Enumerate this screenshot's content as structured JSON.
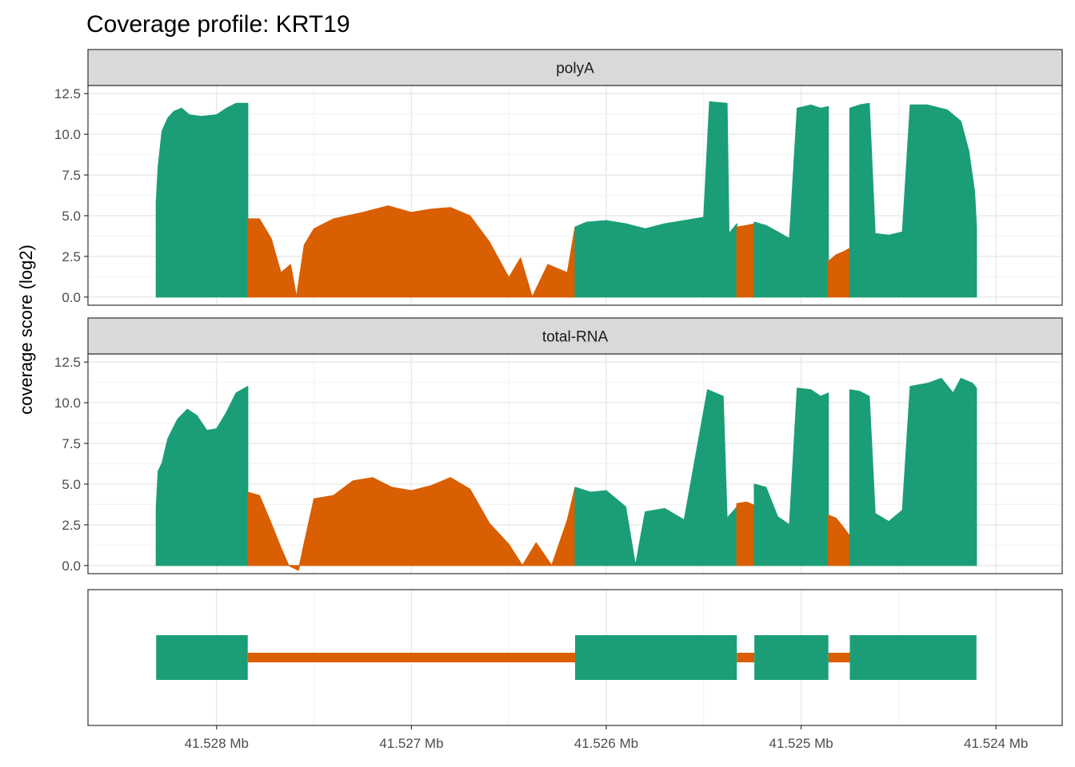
{
  "colors": {
    "exon": "#1b9e77",
    "intron": "#d95f02",
    "strip_bg": "#d9d9d9",
    "grid_major": "#ebebeb",
    "grid_minor": "#f3f3f3",
    "border": "#333333"
  },
  "chart_data": {
    "type": "area",
    "title": "Coverage profile: KRT19",
    "ylabel": "coverage score (log2)",
    "xlabel": "",
    "x_unit": "Mb",
    "x_reversed": true,
    "xlim": [
      41.52866,
      41.52366
    ],
    "x_ticks": [
      41.528,
      41.527,
      41.526,
      41.525,
      41.524
    ],
    "x_tick_labels": [
      "41.528 Mb",
      "41.527 Mb",
      "41.526 Mb",
      "41.525 Mb",
      "41.524 Mb"
    ],
    "ylim": [
      -0.5,
      13.0
    ],
    "y_ticks": [
      0,
      2.5,
      5,
      7.5,
      10,
      12.5
    ],
    "y_tick_labels": [
      "0.0",
      "2.5",
      "5.0",
      "7.5",
      "10.0",
      "12.5"
    ],
    "grid": true,
    "legend": "none",
    "gene_model": {
      "exons": [
        [
          41.52831,
          41.52784
        ],
        [
          41.52616,
          41.52533
        ],
        [
          41.52524,
          41.52486
        ],
        [
          41.52475,
          41.5241
        ]
      ],
      "introns": [
        [
          41.52784,
          41.52616
        ],
        [
          41.52533,
          41.52524
        ],
        [
          41.52486,
          41.52475
        ]
      ]
    },
    "panels": [
      {
        "name": "polyA",
        "segments": [
          {
            "region": "exon",
            "start": 41.52831,
            "end": 41.52784,
            "points": [
              [
                41.52831,
                5.8
              ],
              [
                41.5283,
                8.0
              ],
              [
                41.52828,
                10.2
              ],
              [
                41.52825,
                11.0
              ],
              [
                41.52822,
                11.4
              ],
              [
                41.52818,
                11.6
              ],
              [
                41.52814,
                11.2
              ],
              [
                41.52808,
                11.1
              ],
              [
                41.528,
                11.2
              ],
              [
                41.52795,
                11.6
              ],
              [
                41.5279,
                11.9
              ],
              [
                41.52784,
                11.9
              ]
            ]
          },
          {
            "region": "intron",
            "start": 41.52784,
            "end": 41.52616,
            "points": [
              [
                41.52784,
                4.8
              ],
              [
                41.52778,
                4.8
              ],
              [
                41.52772,
                3.6
              ],
              [
                41.52767,
                1.5
              ],
              [
                41.52762,
                2.0
              ],
              [
                41.52759,
                0.0
              ],
              [
                41.52755,
                3.2
              ],
              [
                41.5275,
                4.2
              ],
              [
                41.5274,
                4.8
              ],
              [
                41.52725,
                5.2
              ],
              [
                41.52712,
                5.6
              ],
              [
                41.527,
                5.2
              ],
              [
                41.5269,
                5.4
              ],
              [
                41.5268,
                5.5
              ],
              [
                41.5267,
                5.0
              ],
              [
                41.5266,
                3.4
              ],
              [
                41.5265,
                1.2
              ],
              [
                41.52644,
                2.4
              ],
              [
                41.52638,
                0.0
              ],
              [
                41.5263,
                2.0
              ],
              [
                41.5262,
                1.5
              ],
              [
                41.5261,
                3.6
              ],
              [
                41.526,
                4.6
              ],
              [
                41.5259,
                5.0
              ],
              [
                41.5258,
                4.4
              ],
              [
                41.52575,
                2.2
              ],
              [
                41.52572,
                0.1
              ],
              [
                41.52565,
                0.0
              ],
              [
                41.52558,
                2.8
              ],
              [
                41.5255,
                4.4
              ],
              [
                41.5254,
                5.1
              ],
              [
                41.5253,
                5.2
              ],
              [
                41.5252,
                5.0
              ],
              [
                41.5251,
                4.8
              ],
              [
                41.525,
                4.6
              ],
              [
                41.5249,
                4.3
              ],
              [
                41.52482,
                4.2
              ],
              [
                41.5247,
                4.1
              ],
              [
                41.5246,
                4.0
              ],
              [
                41.52445,
                4.2
              ],
              [
                41.5243,
                4.4
              ],
              [
                41.5242,
                4.3
              ],
              [
                41.5241,
                4.2
              ],
              [
                41.52616,
                4.3
              ]
            ]
          },
          {
            "region": "exon",
            "start": 41.52616,
            "end": 41.52533,
            "points": [
              [
                41.52616,
                4.3
              ],
              [
                41.5261,
                4.6
              ],
              [
                41.526,
                4.7
              ],
              [
                41.5259,
                4.5
              ],
              [
                41.5258,
                4.2
              ],
              [
                41.5257,
                4.5
              ],
              [
                41.5256,
                4.7
              ],
              [
                41.5255,
                4.9
              ],
              [
                41.52547,
                12.0
              ],
              [
                41.52538,
                11.9
              ],
              [
                41.52537,
                3.9
              ],
              [
                41.5253,
                4.5
              ],
              [
                41.52525,
                4.8
              ],
              [
                41.5252,
                12.0
              ],
              [
                41.5251,
                11.8
              ],
              [
                41.52503,
                12.0
              ],
              [
                41.52495,
                11.8
              ],
              [
                41.52533,
                4.5
              ]
            ]
          },
          {
            "region": "intron",
            "start": 41.52533,
            "end": 41.52524,
            "points": [
              [
                41.52533,
                4.3
              ],
              [
                41.52528,
                4.4
              ],
              [
                41.52524,
                4.5
              ]
            ]
          },
          {
            "region": "exon",
            "start": 41.52524,
            "end": 41.52486,
            "points": [
              [
                41.52524,
                4.6
              ],
              [
                41.52518,
                4.4
              ],
              [
                41.52512,
                4.0
              ],
              [
                41.52506,
                3.6
              ],
              [
                41.52502,
                11.6
              ],
              [
                41.52495,
                11.8
              ],
              [
                41.5249,
                11.6
              ],
              [
                41.52486,
                11.7
              ]
            ]
          },
          {
            "region": "intron",
            "start": 41.52486,
            "end": 41.52475,
            "points": [
              [
                41.52486,
                2.2
              ],
              [
                41.52482,
                2.6
              ],
              [
                41.52478,
                2.8
              ],
              [
                41.52475,
                3.0
              ]
            ]
          },
          {
            "region": "exon",
            "start": 41.52475,
            "end": 41.5241,
            "points": [
              [
                41.52475,
                11.6
              ],
              [
                41.5247,
                11.8
              ],
              [
                41.52465,
                11.9
              ],
              [
                41.52462,
                3.9
              ],
              [
                41.52455,
                3.8
              ],
              [
                41.52448,
                4.0
              ],
              [
                41.52444,
                11.8
              ],
              [
                41.52435,
                11.8
              ],
              [
                41.52425,
                11.5
              ],
              [
                41.52418,
                10.8
              ],
              [
                41.52414,
                9.0
              ],
              [
                41.52411,
                6.5
              ],
              [
                41.5241,
                4.3
              ]
            ]
          }
        ]
      },
      {
        "name": "total-RNA",
        "segments": [
          {
            "region": "exon",
            "start": 41.52831,
            "end": 41.52784,
            "points": [
              [
                41.52831,
                3.5
              ],
              [
                41.5283,
                5.8
              ],
              [
                41.52828,
                6.3
              ],
              [
                41.52825,
                7.8
              ],
              [
                41.5282,
                9.0
              ],
              [
                41.52815,
                9.6
              ],
              [
                41.5281,
                9.2
              ],
              [
                41.52805,
                8.3
              ],
              [
                41.528,
                8.4
              ],
              [
                41.52795,
                9.4
              ],
              [
                41.5279,
                10.6
              ],
              [
                41.52784,
                11.0
              ]
            ]
          },
          {
            "region": "intron",
            "start": 41.52784,
            "end": 41.52616,
            "points": [
              [
                41.52784,
                4.5
              ],
              [
                41.52778,
                4.3
              ],
              [
                41.52772,
                2.6
              ],
              [
                41.52767,
                1.1
              ],
              [
                41.52763,
                0.0
              ],
              [
                41.52758,
                -0.3
              ],
              [
                41.52755,
                1.4
              ],
              [
                41.5275,
                4.1
              ],
              [
                41.5274,
                4.3
              ],
              [
                41.5273,
                5.2
              ],
              [
                41.5272,
                5.4
              ],
              [
                41.5271,
                4.8
              ],
              [
                41.527,
                4.6
              ],
              [
                41.5269,
                4.9
              ],
              [
                41.5268,
                5.4
              ],
              [
                41.5267,
                4.7
              ],
              [
                41.5266,
                2.6
              ],
              [
                41.5265,
                1.3
              ],
              [
                41.52643,
                0.0
              ],
              [
                41.52636,
                1.4
              ],
              [
                41.52628,
                0.0
              ],
              [
                41.5262,
                2.8
              ],
              [
                41.5261,
                4.2
              ],
              [
                41.526,
                5.3
              ],
              [
                41.5259,
                4.4
              ],
              [
                41.5258,
                2.0
              ],
              [
                41.52572,
                0.0
              ],
              [
                41.52565,
                0.0
              ],
              [
                41.5256,
                2.7
              ],
              [
                41.5255,
                4.2
              ],
              [
                41.5254,
                4.8
              ],
              [
                41.5253,
                5.3
              ],
              [
                41.5252,
                4.6
              ],
              [
                41.5251,
                4.5
              ],
              [
                41.525,
                4.0
              ],
              [
                41.5249,
                3.6
              ],
              [
                41.52482,
                3.8
              ],
              [
                41.5247,
                3.4
              ],
              [
                41.5246,
                3.1
              ],
              [
                41.52445,
                3.3
              ],
              [
                41.5243,
                3.6
              ],
              [
                41.5242,
                3.2
              ],
              [
                41.5241,
                3.0
              ],
              [
                41.52616,
                4.8
              ]
            ]
          },
          {
            "region": "exon",
            "start": 41.52616,
            "end": 41.52533,
            "points": [
              [
                41.52616,
                4.8
              ],
              [
                41.52608,
                4.5
              ],
              [
                41.526,
                4.6
              ],
              [
                41.5259,
                3.6
              ],
              [
                41.52585,
                0.0
              ],
              [
                41.5258,
                3.3
              ],
              [
                41.5257,
                3.5
              ],
              [
                41.5256,
                2.8
              ],
              [
                41.52548,
                10.8
              ],
              [
                41.5254,
                10.4
              ],
              [
                41.52538,
                2.9
              ],
              [
                41.5253,
                3.8
              ],
              [
                41.52522,
                10.6
              ],
              [
                41.52515,
                11.4
              ],
              [
                41.52505,
                11.3
              ],
              [
                41.52533,
                3.6
              ]
            ]
          },
          {
            "region": "intron",
            "start": 41.52533,
            "end": 41.52524,
            "points": [
              [
                41.52533,
                3.8
              ],
              [
                41.52528,
                3.9
              ],
              [
                41.52524,
                3.7
              ]
            ]
          },
          {
            "region": "exon",
            "start": 41.52524,
            "end": 41.52486,
            "points": [
              [
                41.52524,
                5.0
              ],
              [
                41.52518,
                4.8
              ],
              [
                41.52512,
                3.0
              ],
              [
                41.52506,
                2.5
              ],
              [
                41.52502,
                10.9
              ],
              [
                41.52495,
                10.8
              ],
              [
                41.5249,
                10.4
              ],
              [
                41.52486,
                10.6
              ]
            ]
          },
          {
            "region": "intron",
            "start": 41.52486,
            "end": 41.52475,
            "points": [
              [
                41.52486,
                3.1
              ],
              [
                41.52482,
                2.9
              ],
              [
                41.52478,
                2.3
              ],
              [
                41.52475,
                1.8
              ]
            ]
          },
          {
            "region": "exon",
            "start": 41.52475,
            "end": 41.5241,
            "points": [
              [
                41.52475,
                10.8
              ],
              [
                41.5247,
                10.7
              ],
              [
                41.52465,
                10.4
              ],
              [
                41.52462,
                3.2
              ],
              [
                41.52455,
                2.7
              ],
              [
                41.52448,
                3.4
              ],
              [
                41.52444,
                11.0
              ],
              [
                41.52435,
                11.2
              ],
              [
                41.52428,
                11.5
              ],
              [
                41.52422,
                10.6
              ],
              [
                41.52418,
                11.5
              ],
              [
                41.52412,
                11.2
              ],
              [
                41.5241,
                10.9
              ]
            ]
          }
        ]
      }
    ]
  }
}
